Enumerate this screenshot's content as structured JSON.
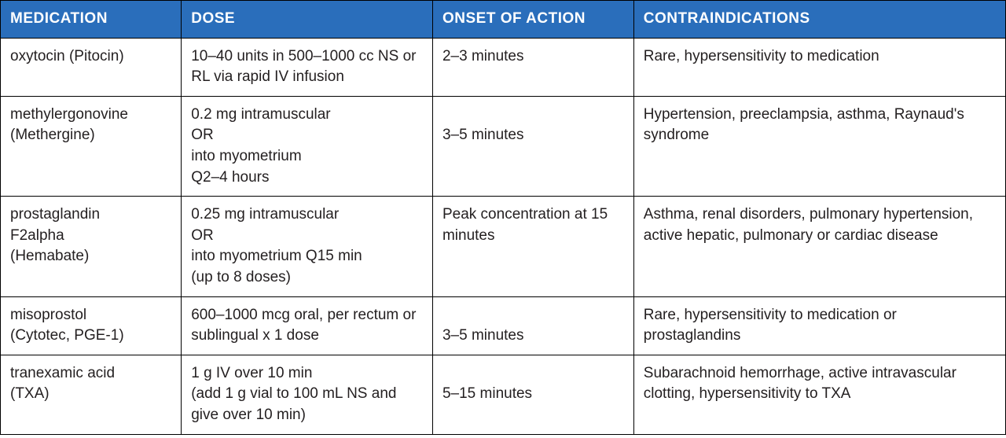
{
  "table": {
    "type": "table",
    "header_bg": "#2a6ebb",
    "header_fg": "#ffffff",
    "border_color": "#000000",
    "cell_fg": "#231f20",
    "background_color": "#ffffff",
    "font_family": "Segoe UI, Arial, sans-serif",
    "header_fontsize": 19,
    "cell_fontsize": 19,
    "columns": [
      {
        "key": "medication",
        "label": "MEDICATION",
        "width_pct": 18
      },
      {
        "key": "dose",
        "label": "DOSE",
        "width_pct": 25
      },
      {
        "key": "onset",
        "label": "ONSET OF ACTION",
        "width_pct": 20
      },
      {
        "key": "contra",
        "label": "CONTRAINDICATIONS",
        "width_pct": 37
      }
    ],
    "rows": [
      {
        "medication": "oxytocin (Pitocin)",
        "dose": "10–40 units in 500–1000 cc NS or RL via rapid IV infusion",
        "onset": "2–3 minutes",
        "contra": "Rare, hypersensitivity to medication"
      },
      {
        "medication": "methylergonovine\n(Methergine)",
        "dose": "0.2 mg intramuscular\nOR\ninto myometrium\nQ2–4 hours",
        "onset": "\n3–5 minutes",
        "contra": "Hypertension, preeclampsia, asthma, Raynaud's syndrome"
      },
      {
        "medication": "prostaglandin\nF2alpha\n(Hemabate)",
        "dose": "0.25 mg intramuscular\nOR\ninto myometrium Q15 min\n(up to 8 doses)",
        "onset": "Peak concentration at 15 minutes",
        "contra": "Asthma, renal disorders, pulmonary hypertension, active hepatic, pulmonary or cardiac disease"
      },
      {
        "medication": "misoprostol\n(Cytotec, PGE-1)",
        "dose": "600–1000 mcg oral, per rectum or sublingual x 1 dose",
        "onset": "\n3–5 minutes",
        "contra": "Rare, hypersensitivity to medication or prostaglandins"
      },
      {
        "medication": "tranexamic acid\n(TXA)",
        "dose": "1 g IV over 10 min\n(add 1 g vial to 100 mL NS and give over 10 min)",
        "onset": "\n5–15 minutes",
        "contra": "Subarachnoid hemorrhage, active intravascular clotting, hypersensitivity to TXA"
      }
    ]
  }
}
